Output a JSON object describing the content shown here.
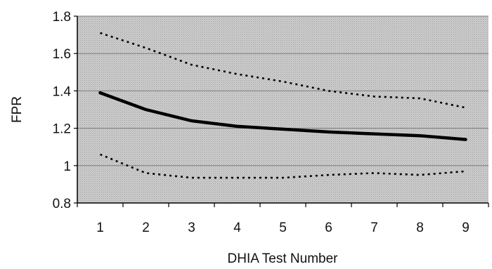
{
  "chart_data": {
    "type": "line",
    "title": "",
    "xlabel": "DHIA Test Number",
    "ylabel": "FPR",
    "x": [
      1,
      2,
      3,
      4,
      5,
      6,
      7,
      8,
      9
    ],
    "xticks": [
      "1",
      "2",
      "3",
      "4",
      "5",
      "6",
      "7",
      "8",
      "9"
    ],
    "yticks": [
      "0.8",
      "1",
      "1.2",
      "1.4",
      "1.6",
      "1.8"
    ],
    "ylim": [
      0.8,
      1.8
    ],
    "xlim": [
      0.5,
      9.5
    ],
    "grid": "horizontal",
    "legend": "none",
    "series": [
      {
        "style": "solid-thick",
        "values": [
          1.39,
          1.3,
          1.24,
          1.21,
          1.195,
          1.18,
          1.17,
          1.16,
          1.14
        ]
      },
      {
        "style": "dotted",
        "values": [
          1.71,
          1.63,
          1.54,
          1.49,
          1.45,
          1.4,
          1.37,
          1.36,
          1.31
        ]
      },
      {
        "style": "dotted",
        "values": [
          1.06,
          0.96,
          0.935,
          0.935,
          0.935,
          0.95,
          0.96,
          0.95,
          0.97
        ]
      }
    ],
    "colors": {
      "plot_background": "#c8c8c8",
      "line": "#000000",
      "grid": "#7a7a7a"
    }
  }
}
